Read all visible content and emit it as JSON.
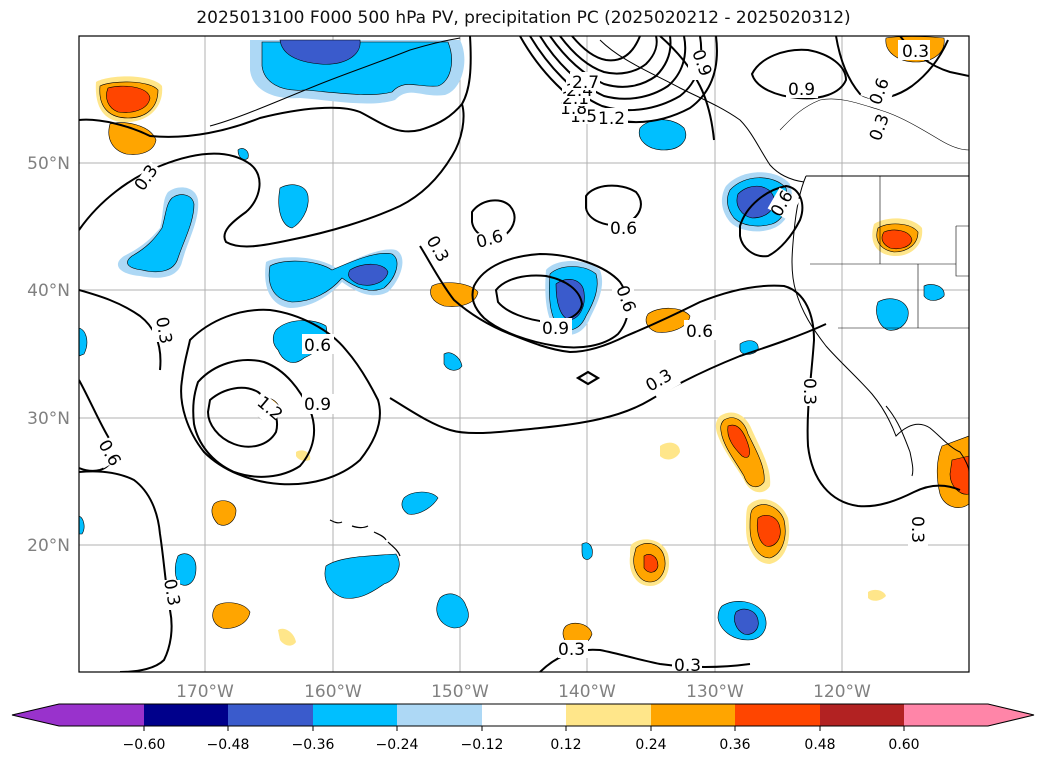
{
  "title": "2025013100 F000 500 hPa PV, precipitation PC (2025020212 - 2025020312)",
  "latitude_labels": [
    "50°N",
    "40°N",
    "30°N",
    "20°N"
  ],
  "longitude_labels": [
    "170°W",
    "160°W",
    "150°W",
    "140°W",
    "130°W",
    "120°W"
  ],
  "pv_contour_labels": [
    "0.3",
    "0.6",
    "0.9",
    "1.2",
    "1.5",
    "1.8",
    "2.1",
    "2.4",
    "2.7"
  ],
  "colorbar": {
    "ticks": [
      "−0.60",
      "−0.48",
      "−0.36",
      "−0.24",
      "−0.12",
      "0.12",
      "0.24",
      "0.36",
      "0.48",
      "0.60"
    ],
    "colors": [
      "#9932cc",
      "#00008b",
      "#3a5bcc",
      "#00bfff",
      "#add8f5",
      "#ffffff",
      "#ffe68a",
      "#ffa500",
      "#ff4500",
      "#b22222",
      "#ff85a8"
    ]
  },
  "colors": {
    "positive_light": "#ffe68a",
    "positive_mid": "#ffa500",
    "positive_strong": "#ff4500",
    "negative_light": "#add8f5",
    "negative_mid": "#00bfff",
    "negative_strong": "#3a5bcc",
    "gridline": "#b0b0b0",
    "axis_label": "#808080"
  }
}
